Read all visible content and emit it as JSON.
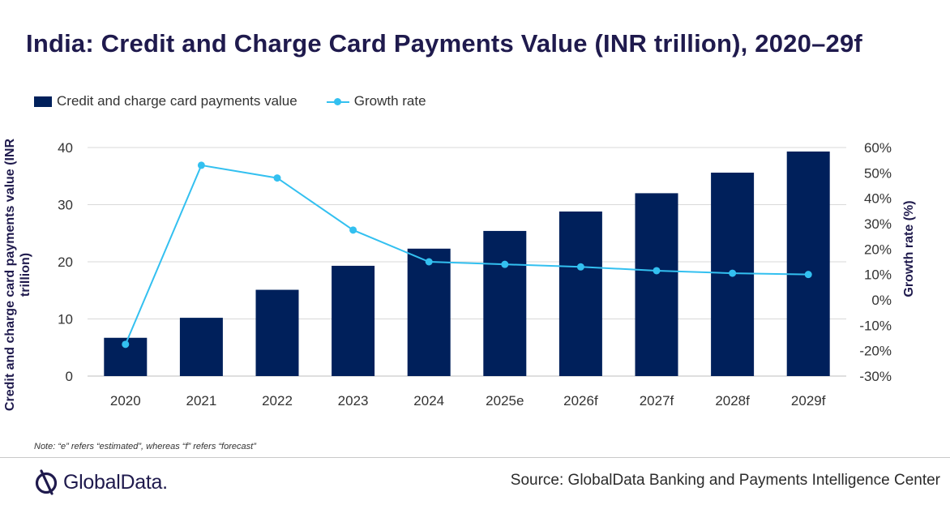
{
  "title": "India: Credit and Charge Card Payments Value (INR trillion), 2020–29f",
  "note": "Note: “e” refers “estimated”, whereas “f” refers “forecast”",
  "source": "Source: GlobalData Banking and Payments Intelligence Center",
  "brand": "GlobalData.",
  "colors": {
    "bar": "#00205b",
    "line": "#33c0f0",
    "title": "#1f1a4d",
    "grid": "#d9d9d9"
  },
  "chart_data": {
    "type": "bar",
    "title": "India: Credit and Charge Card Payments Value (INR trillion), 2020–29f",
    "categories": [
      "2020",
      "2021",
      "2022",
      "2023",
      "2024",
      "2025e",
      "2026f",
      "2027f",
      "2028f",
      "2029f"
    ],
    "ylabel": "Credit and charge card payments value (INR trillion)",
    "y2label": "Growth rate (%)",
    "ylim": [
      0,
      40
    ],
    "yticks": [
      "0",
      "10",
      "20",
      "30",
      "40"
    ],
    "y2lim": [
      -30,
      60
    ],
    "y2ticks": [
      "-30%",
      "-20%",
      "-10%",
      "0%",
      "10%",
      "20%",
      "30%",
      "40%",
      "50%",
      "60%"
    ],
    "grid": true,
    "legend_position": "top-left",
    "series": [
      {
        "name": "Credit and charge card payments value",
        "type": "bar",
        "axis": "left",
        "values": [
          6.7,
          10.2,
          15.1,
          19.3,
          22.3,
          25.4,
          28.8,
          32.0,
          35.6,
          39.3
        ]
      },
      {
        "name": "Growth rate",
        "type": "line",
        "axis": "right",
        "values": [
          -17.5,
          53.0,
          48.0,
          27.5,
          15.0,
          14.0,
          13.0,
          11.5,
          10.5,
          10.0
        ]
      }
    ]
  }
}
